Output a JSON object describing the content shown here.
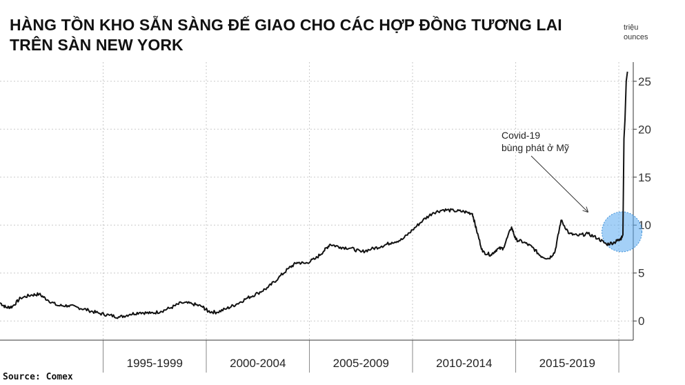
{
  "title_line1": "HÀNG TỒN KHO SẴN SÀNG ĐẾ GIAO CHO CÁC HỢP ĐỒNG TƯƠNG LAI",
  "title_line2": "TRÊN SÀN NEW YORK",
  "unit_line1": "triệu",
  "unit_line2": "ounces",
  "source": "Source: Comex",
  "colors": {
    "line": "#111111",
    "grid": "#c8c8c8",
    "highlight": "#5aa9f0"
  },
  "chart_data": {
    "type": "line",
    "title": "HÀNG TỒN KHO SẴN SÀNG ĐẾ GIAO CHO CÁC HỢP ĐỒNG TƯƠNG LAI TRÊN SÀN NEW YORK",
    "ylabel": "triệu ounces",
    "xlabel": "",
    "xlim": [
      1990,
      2020.7
    ],
    "ylim": [
      -2,
      27
    ],
    "y_ticks": [
      0,
      5,
      10,
      15,
      20,
      25
    ],
    "y_tick_labels": [
      "0",
      "5",
      "10",
      "15",
      "20",
      "25"
    ],
    "x_tick_labels": [
      "1995-1999",
      "2000-2004",
      "2005-2009",
      "2010-2014",
      "2015-2019"
    ],
    "grid": true,
    "series": [
      {
        "values": [
          [
            1990.0,
            1.9
          ],
          [
            1990.3,
            1.4
          ],
          [
            1990.6,
            1.5
          ],
          [
            1991.0,
            2.4
          ],
          [
            1991.5,
            2.7
          ],
          [
            1991.9,
            2.8
          ],
          [
            1992.3,
            2.2
          ],
          [
            1992.8,
            1.6
          ],
          [
            1993.3,
            1.6
          ],
          [
            1993.8,
            1.4
          ],
          [
            1994.3,
            1.1
          ],
          [
            1994.8,
            0.8
          ],
          [
            1995.3,
            0.6
          ],
          [
            1995.8,
            0.4
          ],
          [
            1996.3,
            0.7
          ],
          [
            1996.8,
            0.9
          ],
          [
            1997.3,
            0.8
          ],
          [
            1997.8,
            1.0
          ],
          [
            1998.3,
            1.4
          ],
          [
            1998.8,
            1.9
          ],
          [
            1999.3,
            1.8
          ],
          [
            1999.8,
            1.5
          ],
          [
            2000.1,
            1.0
          ],
          [
            2000.5,
            0.9
          ],
          [
            2001.0,
            1.3
          ],
          [
            2001.5,
            1.8
          ],
          [
            2002.0,
            2.4
          ],
          [
            2002.5,
            2.9
          ],
          [
            2003.0,
            3.5
          ],
          [
            2003.5,
            4.5
          ],
          [
            2004.0,
            5.5
          ],
          [
            2004.4,
            6.1
          ],
          [
            2004.8,
            6.0
          ],
          [
            2005.3,
            6.5
          ],
          [
            2005.7,
            7.3
          ],
          [
            2006.0,
            8.0
          ],
          [
            2006.5,
            7.7
          ],
          [
            2007.0,
            7.6
          ],
          [
            2007.5,
            7.2
          ],
          [
            2008.0,
            7.5
          ],
          [
            2008.5,
            7.8
          ],
          [
            2009.0,
            8.2
          ],
          [
            2009.5,
            8.5
          ],
          [
            2010.0,
            9.5
          ],
          [
            2010.5,
            10.5
          ],
          [
            2011.0,
            11.3
          ],
          [
            2011.5,
            11.6
          ],
          [
            2012.0,
            11.5
          ],
          [
            2012.5,
            11.4
          ],
          [
            2012.9,
            11.2
          ],
          [
            2013.1,
            9.5
          ],
          [
            2013.4,
            7.2
          ],
          [
            2013.8,
            6.9
          ],
          [
            2014.1,
            7.5
          ],
          [
            2014.4,
            7.6
          ],
          [
            2014.8,
            9.8
          ],
          [
            2015.0,
            8.5
          ],
          [
            2015.4,
            8.2
          ],
          [
            2015.8,
            7.7
          ],
          [
            2016.2,
            6.8
          ],
          [
            2016.6,
            6.5
          ],
          [
            2016.9,
            7.2
          ],
          [
            2017.2,
            10.5
          ],
          [
            2017.6,
            9.1
          ],
          [
            2018.0,
            8.9
          ],
          [
            2018.5,
            9.1
          ],
          [
            2019.0,
            8.6
          ],
          [
            2019.4,
            8.0
          ],
          [
            2019.8,
            8.2
          ],
          [
            2020.0,
            8.5
          ],
          [
            2020.15,
            8.7
          ],
          [
            2020.2,
            9.0
          ],
          [
            2020.25,
            19.0
          ],
          [
            2020.3,
            21.0
          ],
          [
            2020.36,
            25.0
          ],
          [
            2020.42,
            26.0
          ]
        ]
      }
    ],
    "annotation": {
      "text_line1": "Covid-19",
      "text_line2": "bùng phát ở Mỹ"
    }
  }
}
